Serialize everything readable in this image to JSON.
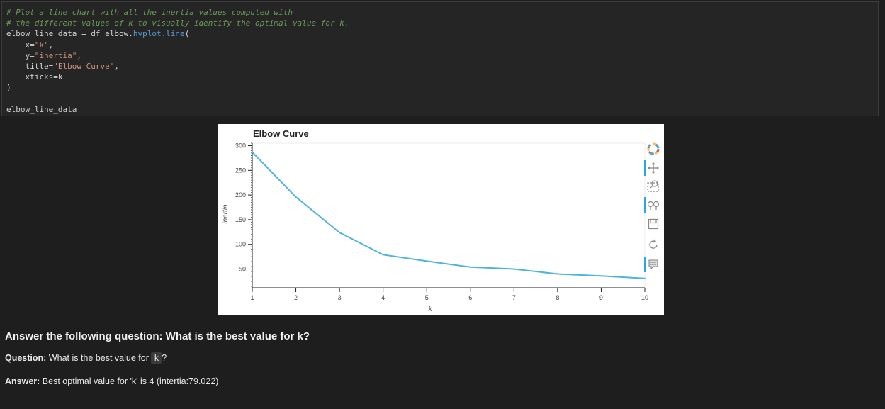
{
  "code_cell": {
    "comment1": "# Plot a line chart with all the inertia values computed with",
    "comment2": "# the different values of k to visually identify the optimal value for k.",
    "line3_var": "elbow_line_data",
    "line3_eq": " = ",
    "line3_obj": "df_elbow.",
    "line3_attr": "hvplot.line",
    "line3_paren": "(",
    "line4_key": "x",
    "line4_val": "\"k\"",
    "line5_key": "y",
    "line5_val": "\"inertia\"",
    "line6_key": "title",
    "line6_val": "\"Elbow Curve\"",
    "line7_key": "xticks",
    "line7_val": "k",
    "line8": ")",
    "line10": "elbow_line_data"
  },
  "chart_data": {
    "type": "line",
    "title": "Elbow Curve",
    "xlabel": "k",
    "ylabel": "inertia",
    "x": [
      1,
      2,
      3,
      4,
      5,
      6,
      7,
      8,
      9,
      10
    ],
    "y": [
      287,
      196,
      124,
      79.022,
      66,
      54,
      50,
      40,
      36,
      31
    ],
    "xlim": [
      1,
      10
    ],
    "ylim": [
      12,
      305
    ],
    "xticks": [
      "1",
      "2",
      "3",
      "4",
      "5",
      "6",
      "7",
      "8",
      "9",
      "10"
    ],
    "yticks": [
      "50",
      "100",
      "150",
      "200",
      "250",
      "300"
    ],
    "line_color": "#4eb3e0"
  },
  "toolbar": {
    "icons": [
      "bokeh-logo-icon",
      "pan-icon",
      "box-zoom-icon",
      "wheel-zoom-icon",
      "save-icon",
      "reset-icon",
      "hover-icon"
    ]
  },
  "markdown": {
    "heading": "Answer the following question: What is the best value for k?",
    "question_label": "Question:",
    "question_text": " What is the best value for ",
    "question_code": "k",
    "question_end": "?",
    "answer_label": "Answer:",
    "answer_text": " Best optimal value for 'k' is 4 (intertia:79.022)"
  }
}
